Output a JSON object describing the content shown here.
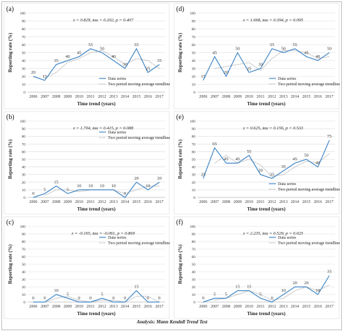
{
  "footer": "Analysis: Mann Kendall Trend Test",
  "chart_data": [
    {
      "type": "line",
      "panel": "(a)",
      "stats": "z = 0.829, tau = 0.202, p = 0.407",
      "x": [
        "2006",
        "2007",
        "2008",
        "2009",
        "2010",
        "2011",
        "2012",
        "2013",
        "2014",
        "2015",
        "2016",
        "2017"
      ],
      "series": [
        {
          "name": "Data series",
          "values": [
            20,
            15,
            35,
            40,
            45,
            55,
            50,
            40,
            30,
            55,
            25,
            35
          ]
        },
        {
          "name": "Two period moving average trendline",
          "values": [
            null,
            17.5,
            25,
            37.5,
            42.5,
            50,
            52.5,
            45,
            35,
            42.5,
            40,
            30
          ]
        }
      ],
      "xlabel": "Time trend (years)",
      "ylabel": "Reporting rate (%)",
      "ylim": [
        0,
        100
      ],
      "yticks": [
        "0",
        "10",
        "20",
        "30",
        "40",
        "50",
        "60",
        "70",
        "80",
        "90",
        "100"
      ],
      "grid": true,
      "legend": "bottom-right",
      "colors": {
        "data": "#3f86c6",
        "trend": "#a9a9a9"
      }
    },
    {
      "type": "line",
      "panel": "(b)",
      "stats": "z = 1.704, tau = 0.415, p = 0.088",
      "x": [
        "2006",
        "2007",
        "2008",
        "2009",
        "2010",
        "2011",
        "2012",
        "2013",
        "2014",
        "2015",
        "2016",
        "2017"
      ],
      "series": [
        {
          "name": "Data series",
          "values": [
            0,
            5,
            15,
            5,
            10,
            10,
            10,
            10,
            0,
            20,
            10,
            20
          ]
        },
        {
          "name": "Two period moving average trendline",
          "values": [
            null,
            2.5,
            10,
            10,
            7.5,
            10,
            10,
            10,
            5,
            10,
            15,
            15
          ]
        }
      ],
      "xlabel": "Time trend (years)",
      "ylabel": "Reporting rate (%)",
      "ylim": [
        0,
        100
      ],
      "yticks": [
        "0",
        "10",
        "20",
        "30",
        "40",
        "50",
        "60",
        "70",
        "80",
        "90",
        "100"
      ],
      "grid": true,
      "legend": "top-right",
      "colors": {
        "data": "#3f86c6",
        "trend": "#a9a9a9"
      }
    },
    {
      "type": "line",
      "panel": "(c)",
      "stats": "z = -0.165, tau = -0.061, p = 0.869",
      "x": [
        "2006",
        "2007",
        "2008",
        "2009",
        "2010",
        "2011",
        "2012",
        "2013",
        "2014",
        "2015",
        "2016",
        "2017"
      ],
      "series": [
        {
          "name": "Data series",
          "values": [
            0,
            0,
            10,
            5,
            0,
            0,
            5,
            0,
            0,
            15,
            0,
            0
          ]
        },
        {
          "name": "Two period moving average trendline",
          "values": [
            null,
            0,
            5,
            7.5,
            2.5,
            0,
            2.5,
            2.5,
            0,
            7.5,
            7.5,
            0
          ]
        }
      ],
      "xlabel": "Time trend (years)",
      "ylabel": "Reporting rate (%)",
      "ylim": [
        0,
        100
      ],
      "yticks": [
        "0",
        "10",
        "20",
        "30",
        "40",
        "50",
        "60",
        "70",
        "80",
        "90",
        "100"
      ],
      "grid": true,
      "legend": "top-right",
      "colors": {
        "data": "#3f86c6",
        "trend": "#a9a9a9"
      }
    },
    {
      "type": "line",
      "panel": "(d)",
      "stats": "z = 1.668, tau = 0.394, p = 0.095",
      "x": [
        "2006",
        "2007",
        "2008",
        "2009",
        "2010",
        "2011",
        "2012",
        "2013",
        "2014",
        "2015",
        "2016",
        "2017"
      ],
      "series": [
        {
          "name": "Data series",
          "values": [
            15,
            45,
            20,
            50,
            25,
            30,
            55,
            50,
            55,
            45,
            40,
            50
          ]
        },
        {
          "name": "Two period moving average trendline",
          "values": [
            null,
            30,
            32.5,
            35,
            37.5,
            27.5,
            42.5,
            52.5,
            52.5,
            50,
            42.5,
            45
          ]
        }
      ],
      "xlabel": "Time trend (years)",
      "ylabel": "Reporting rate (%)",
      "ylim": [
        0,
        100
      ],
      "yticks": [
        "0",
        "10",
        "20",
        "30",
        "40",
        "50",
        "60",
        "70",
        "80",
        "90",
        "100"
      ],
      "grid": true,
      "legend": "bottom-right",
      "colors": {
        "data": "#3f86c6",
        "trend": "#a9a9a9"
      }
    },
    {
      "type": "line",
      "panel": "(e)",
      "stats": "z = 0.625, tau = 0.156, p = 0.533",
      "x": [
        "2006",
        "2007",
        "2008",
        "2009",
        "2010",
        "2011",
        "2012",
        "2013",
        "2014",
        "2015",
        "2016",
        "2017"
      ],
      "series": [
        {
          "name": "Data series",
          "values": [
            25,
            65,
            45,
            45,
            55,
            30,
            25,
            35,
            45,
            50,
            40,
            75
          ]
        },
        {
          "name": "Two period moving average trendline",
          "values": [
            null,
            45,
            55,
            45,
            50,
            42.5,
            27.5,
            30,
            40,
            47.5,
            45,
            57.5
          ]
        }
      ],
      "xlabel": "Time trend (years)",
      "ylabel": "Reporting rate (%)",
      "ylim": [
        0,
        100
      ],
      "yticks": [
        "0",
        "10",
        "20",
        "30",
        "40",
        "50",
        "60",
        "70",
        "80",
        "90",
        "100"
      ],
      "grid": true,
      "legend": "bottom-right",
      "colors": {
        "data": "#3f86c6",
        "trend": "#a9a9a9"
      }
    },
    {
      "type": "line",
      "panel": "(f)",
      "stats": "z = 2.235, tau = 0.529, p = 0.025",
      "x": [
        "2006",
        "2007",
        "2008",
        "2009",
        "2010",
        "2011",
        "2012",
        "2013",
        "2014",
        "2015",
        "2016",
        "2017"
      ],
      "series": [
        {
          "name": "Data series",
          "values": [
            0,
            5,
            5,
            15,
            15,
            5,
            0,
            10,
            20,
            20,
            10,
            35
          ]
        },
        {
          "name": "Two period moving average trendline",
          "values": [
            null,
            2.5,
            5,
            10,
            15,
            10,
            2.5,
            5,
            15,
            20,
            15,
            22.5
          ]
        }
      ],
      "xlabel": "Time trend (years)",
      "ylabel": "Reporting rate (%)",
      "ylim": [
        0,
        100
      ],
      "yticks": [
        "0",
        "10",
        "20",
        "30",
        "40",
        "50",
        "60",
        "70",
        "80",
        "90",
        "100"
      ],
      "grid": true,
      "legend": "top-right",
      "colors": {
        "data": "#3f86c6",
        "trend": "#a9a9a9"
      }
    }
  ]
}
